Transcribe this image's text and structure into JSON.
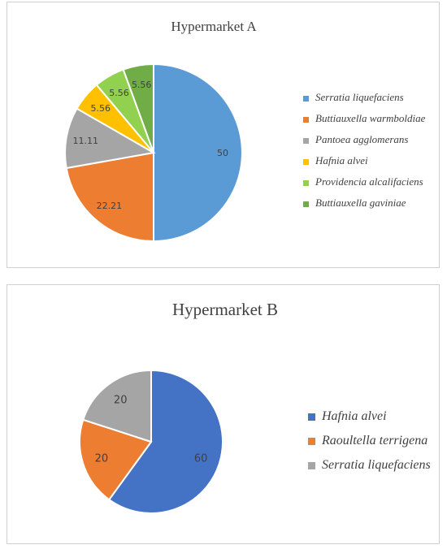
{
  "chart_data": [
    {
      "type": "pie",
      "title": "Hypermarket A",
      "legend_position": "right",
      "slices": [
        {
          "label": "Serratia liquefaciens",
          "value": 50,
          "display": "50",
          "color": "#5B9BD5"
        },
        {
          "label": "Buttiauxella warmboldiae",
          "value": 22.21,
          "display": "22.21",
          "color": "#ED7D31"
        },
        {
          "label": "Pantoea agglomerans",
          "value": 11.11,
          "display": "11.11",
          "color": "#A5A5A5"
        },
        {
          "label": "Hafnia alvei",
          "value": 5.56,
          "display": "5.56",
          "color": "#FFC000"
        },
        {
          "label": "Providencia alcalifaciens",
          "value": 5.56,
          "display": "5.56",
          "color": "#92D050"
        },
        {
          "label": "Buttiauxella gaviniae",
          "value": 5.56,
          "display": "5.56",
          "color": "#70AD47"
        }
      ]
    },
    {
      "type": "pie",
      "title": "Hypermarket B",
      "legend_position": "right",
      "slices": [
        {
          "label": "Hafnia alvei",
          "value": 60,
          "display": "60",
          "color": "#4472C4"
        },
        {
          "label": "Raoultella terrigena",
          "value": 20,
          "display": "20",
          "color": "#ED7D31"
        },
        {
          "label": "Serratia liquefaciens",
          "value": 20,
          "display": "20",
          "color": "#A5A5A5"
        }
      ]
    }
  ]
}
